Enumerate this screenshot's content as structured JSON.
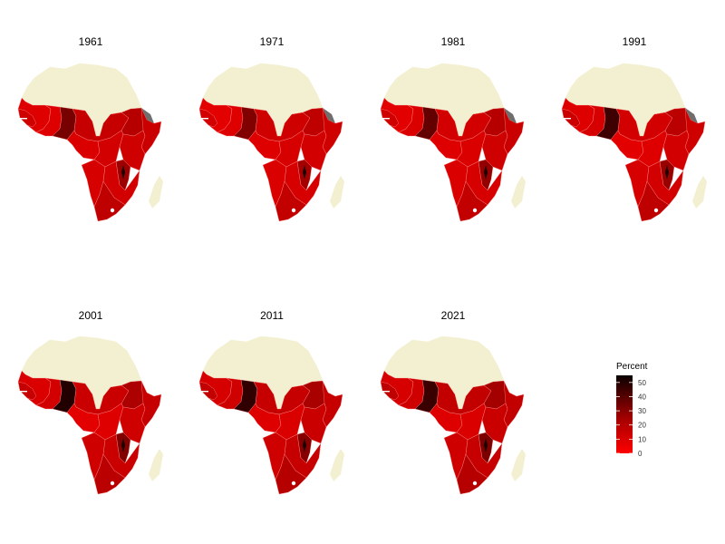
{
  "colors": {
    "north_africa": "#f3f0d2",
    "no_data": "#6e6e6e",
    "water": "#ffffff",
    "scale_low": "#ff0000",
    "scale_mid": "#9a0000",
    "scale_high": "#0a0000"
  },
  "legend": {
    "title": "Percent",
    "ticks": [
      "50",
      "40",
      "30",
      "20",
      "10",
      "0"
    ],
    "tick_values": [
      50,
      40,
      30,
      20,
      10,
      0
    ],
    "min": 0,
    "max": 55
  },
  "panels": [
    {
      "year": "1961",
      "values": {
        "west": 8,
        "senegal": 12,
        "sahel_w": 8,
        "nigeria": 32,
        "chad_sudan": 14,
        "central": 9,
        "congo": 11,
        "ethiopia": 18,
        "somalia": 13,
        "east": 12,
        "rift": 24,
        "angola_namibia": 10,
        "zambia_moz": 11,
        "south": 16
      },
      "horn_no_data": true
    },
    {
      "year": "1971",
      "values": {
        "west": 7,
        "senegal": 11,
        "sahel_w": 8,
        "nigeria": 30,
        "chad_sudan": 12,
        "central": 8,
        "congo": 10,
        "ethiopia": 16,
        "somalia": 12,
        "east": 11,
        "rift": 22,
        "angola_namibia": 9,
        "zambia_moz": 10,
        "south": 15
      },
      "horn_no_data": true
    },
    {
      "year": "1981",
      "values": {
        "west": 7,
        "senegal": 12,
        "sahel_w": 9,
        "nigeria": 36,
        "chad_sudan": 11,
        "central": 8,
        "congo": 9,
        "ethiopia": 18,
        "somalia": 13,
        "east": 12,
        "rift": 26,
        "angola_namibia": 9,
        "zambia_moz": 10,
        "south": 15
      },
      "horn_no_data": true
    },
    {
      "year": "1991",
      "values": {
        "west": 8,
        "senegal": 13,
        "sahel_w": 10,
        "nigeria": 44,
        "chad_sudan": 11,
        "central": 7,
        "congo": 8,
        "ethiopia": 17,
        "somalia": 12,
        "east": 11,
        "rift": 25,
        "angola_namibia": 10,
        "zambia_moz": 11,
        "south": 16
      },
      "horn_no_data": true
    },
    {
      "year": "2001",
      "values": {
        "west": 9,
        "senegal": 14,
        "sahel_w": 11,
        "nigeria": 50,
        "chad_sudan": 13,
        "central": 7,
        "congo": 8,
        "ethiopia": 20,
        "somalia": 14,
        "east": 12,
        "rift": 30,
        "angola_namibia": 12,
        "zambia_moz": 13,
        "south": 17
      },
      "horn_no_data": false
    },
    {
      "year": "2011",
      "values": {
        "west": 10,
        "senegal": 15,
        "sahel_w": 12,
        "nigeria": 47,
        "chad_sudan": 14,
        "central": 8,
        "congo": 9,
        "ethiopia": 21,
        "somalia": 14,
        "east": 13,
        "rift": 29,
        "angola_namibia": 12,
        "zambia_moz": 14,
        "south": 18
      },
      "horn_no_data": false
    },
    {
      "year": "2021",
      "values": {
        "west": 10,
        "senegal": 16,
        "sahel_w": 12,
        "nigeria": 45,
        "chad_sudan": 15,
        "central": 8,
        "congo": 9,
        "ethiopia": 22,
        "somalia": 15,
        "east": 13,
        "rift": 31,
        "angola_namibia": 12,
        "zambia_moz": 14,
        "south": 18
      },
      "horn_no_data": false
    }
  ]
}
